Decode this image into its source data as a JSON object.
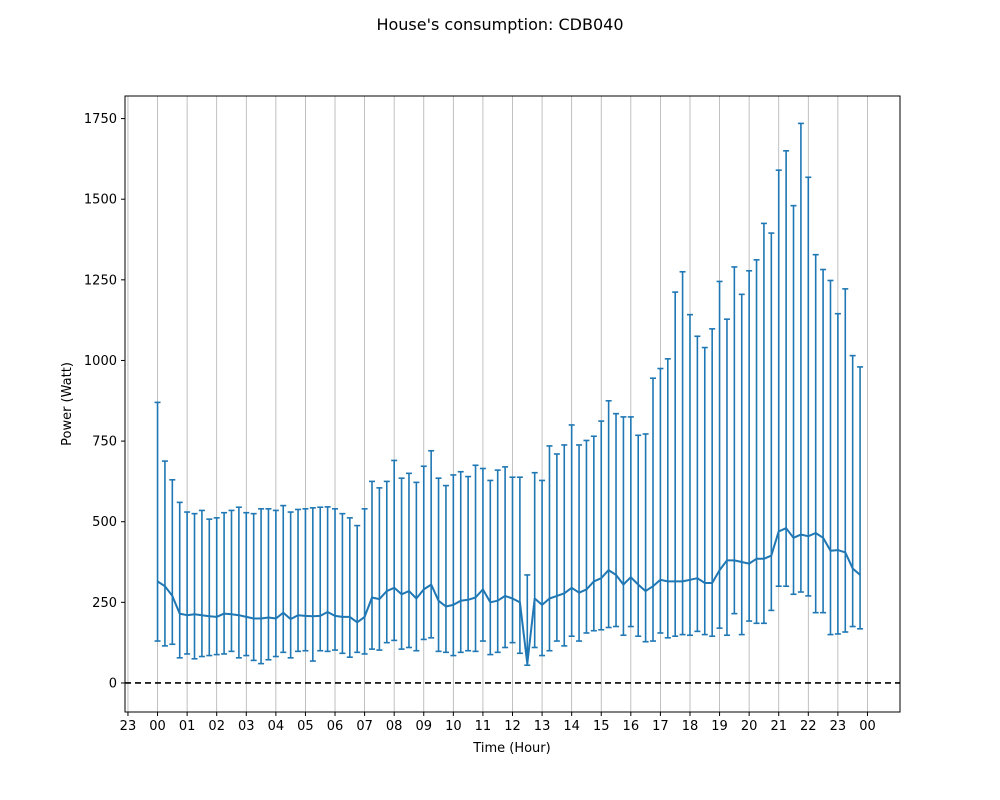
{
  "chart_data": {
    "type": "line",
    "title": "House's consumption: CDB040",
    "xlabel": "Time (Hour)",
    "ylabel": "Power (Watt)",
    "ylim": [
      -90,
      1820
    ],
    "xlim": [
      -1.1,
      25.1
    ],
    "x_tick_labels": [
      "23",
      "00",
      "01",
      "02",
      "03",
      "04",
      "05",
      "06",
      "07",
      "08",
      "09",
      "10",
      "11",
      "12",
      "13",
      "14",
      "15",
      "16",
      "17",
      "18",
      "19",
      "20",
      "21",
      "22",
      "23",
      "00"
    ],
    "y_ticks": [
      0,
      250,
      500,
      750,
      1000,
      1250,
      1500,
      1750
    ],
    "grid": "vertical",
    "reference_line": {
      "y": 0,
      "style": "dashed",
      "color": "#000000"
    },
    "series_color": "#1f77b4",
    "series": [
      {
        "x": [
          0.0,
          0.25,
          0.5,
          0.75,
          1.0,
          1.25,
          1.5,
          1.75,
          2.0,
          2.25,
          2.5,
          2.75,
          3.0,
          3.25,
          3.5,
          3.75,
          4.0,
          4.25,
          4.5,
          4.75,
          5.0,
          5.25,
          5.5,
          5.75,
          6.0,
          6.25,
          6.5,
          6.75,
          7.0,
          7.25,
          7.5,
          7.75,
          8.0,
          8.25,
          8.5,
          8.75,
          9.0,
          9.25,
          9.5,
          9.75,
          10.0,
          10.25,
          10.5,
          10.75,
          11.0,
          11.25,
          11.5,
          11.75,
          12.0,
          12.25,
          12.5,
          12.75,
          13.0,
          13.25,
          13.5,
          13.75,
          14.0,
          14.25,
          14.5,
          14.75,
          15.0,
          15.25,
          15.5,
          15.75,
          16.0,
          16.25,
          16.5,
          16.75,
          17.0,
          17.25,
          17.5,
          17.75,
          18.0,
          18.25,
          18.5,
          18.75,
          19.0,
          19.25,
          19.5,
          19.75,
          20.0,
          20.25,
          20.5,
          20.75,
          21.0,
          21.25,
          21.5,
          21.75,
          22.0,
          22.25,
          22.5,
          22.75,
          23.0,
          23.25,
          23.5,
          23.75
        ],
        "values": [
          315,
          300,
          270,
          215,
          210,
          213,
          210,
          207,
          205,
          215,
          213,
          210,
          205,
          200,
          200,
          203,
          200,
          218,
          198,
          210,
          208,
          207,
          208,
          220,
          208,
          205,
          205,
          188,
          205,
          265,
          260,
          285,
          295,
          275,
          285,
          262,
          290,
          305,
          255,
          237,
          242,
          255,
          258,
          265,
          290,
          250,
          255,
          270,
          262,
          250,
          60,
          262,
          242,
          262,
          270,
          278,
          295,
          280,
          290,
          315,
          325,
          350,
          335,
          305,
          328,
          305,
          285,
          300,
          320,
          315,
          315,
          315,
          320,
          325,
          310,
          310,
          350,
          380,
          380,
          375,
          370,
          385,
          385,
          395,
          470,
          480,
          450,
          460,
          455,
          465,
          450,
          410,
          412,
          405,
          355,
          335
        ],
        "upper": [
          870,
          688,
          630,
          560,
          530,
          525,
          535,
          508,
          512,
          528,
          535,
          545,
          528,
          525,
          540,
          540,
          535,
          550,
          530,
          538,
          540,
          543,
          545,
          546,
          540,
          525,
          512,
          488,
          540,
          625,
          605,
          625,
          690,
          635,
          650,
          622,
          672,
          720,
          635,
          612,
          645,
          655,
          640,
          675,
          665,
          628,
          660,
          670,
          638,
          638,
          335,
          652,
          628,
          735,
          710,
          738,
          800,
          738,
          752,
          765,
          812,
          875,
          835,
          825,
          825,
          768,
          772,
          945,
          975,
          1005,
          1212,
          1275,
          1142,
          1075,
          1040,
          1098,
          1245,
          1128,
          1290,
          1205,
          1278,
          1312,
          1425,
          1395,
          1590,
          1650,
          1480,
          1735,
          1568,
          1328,
          1282,
          1248,
          1145,
          1222,
          1015,
          980
        ],
        "lower": [
          130,
          115,
          120,
          78,
          90,
          75,
          82,
          85,
          88,
          90,
          98,
          78,
          85,
          70,
          60,
          72,
          82,
          95,
          78,
          98,
          100,
          68,
          100,
          98,
          102,
          92,
          80,
          95,
          90,
          105,
          102,
          125,
          132,
          105,
          110,
          100,
          135,
          140,
          98,
          95,
          85,
          95,
          100,
          98,
          130,
          88,
          95,
          110,
          125,
          92,
          55,
          110,
          85,
          100,
          130,
          115,
          145,
          130,
          155,
          162,
          165,
          172,
          175,
          148,
          175,
          145,
          128,
          130,
          155,
          140,
          145,
          150,
          148,
          160,
          150,
          145,
          170,
          148,
          215,
          150,
          192,
          185,
          185,
          225,
          300,
          300,
          275,
          282,
          270,
          218,
          218,
          150,
          152,
          158,
          175,
          168
        ]
      }
    ]
  }
}
